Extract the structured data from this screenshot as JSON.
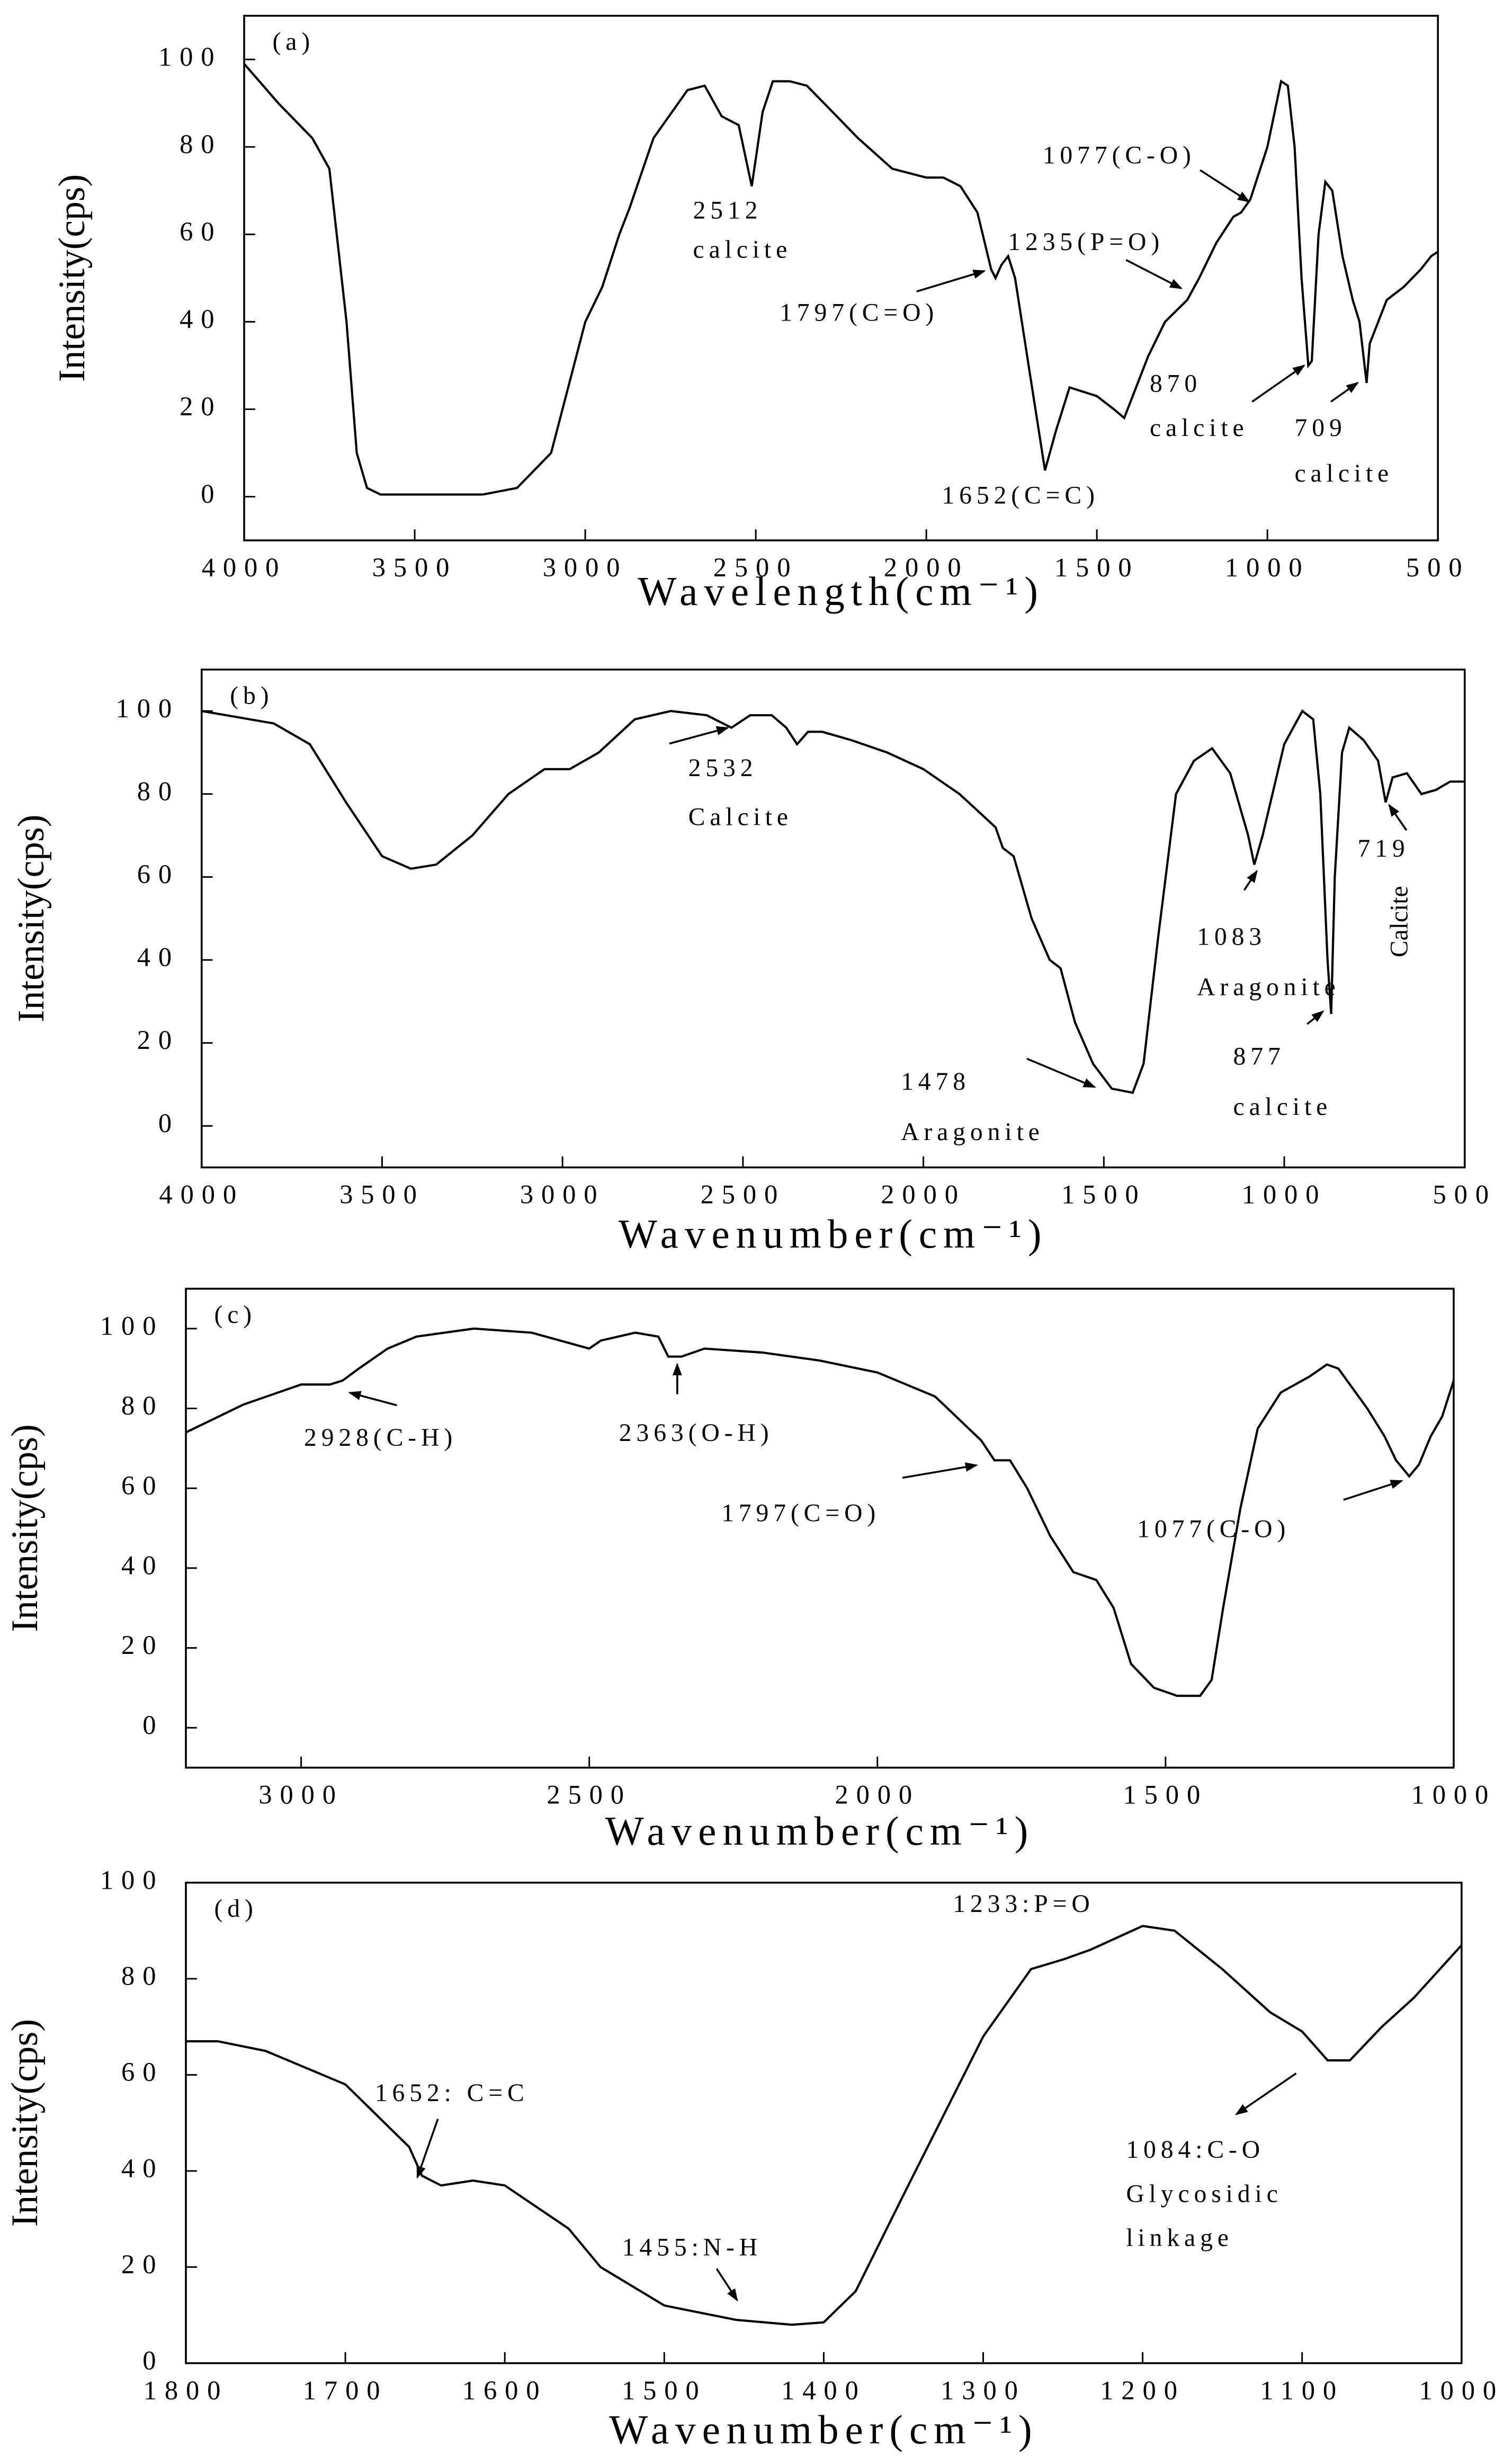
{
  "chart_data": [
    {
      "type": "line",
      "label": "(a)",
      "color": "#000000",
      "x": [
        4000,
        3900,
        3800,
        3750,
        3700,
        3670,
        3640,
        3600,
        3500,
        3400,
        3300,
        3200,
        3100,
        3000,
        2950,
        2900,
        2870,
        2800,
        2700,
        2650,
        2600,
        2550,
        2512,
        2480,
        2450,
        2400,
        2350,
        2300,
        2200,
        2100,
        2000,
        1950,
        1900,
        1850,
        1810,
        1797,
        1780,
        1760,
        1740,
        1700,
        1652,
        1620,
        1580,
        1500,
        1450,
        1420,
        1400,
        1350,
        1300,
        1235,
        1200,
        1150,
        1100,
        1077,
        1050,
        1000,
        960,
        940,
        920,
        900,
        880,
        870,
        850,
        830,
        810,
        780,
        750,
        730,
        709,
        700,
        650,
        600,
        550,
        520,
        500
      ],
      "values": [
        99,
        90,
        82,
        75,
        40,
        10,
        2,
        0.5,
        0.5,
        0.5,
        0.5,
        2,
        10,
        40,
        48,
        60,
        66,
        82,
        93,
        94,
        87,
        85,
        71,
        88,
        95,
        95,
        94,
        90,
        82,
        75,
        73,
        73,
        71,
        65,
        52,
        50,
        53,
        55,
        50,
        30,
        6,
        15,
        25,
        23,
        20,
        18,
        22,
        32,
        40,
        45,
        50,
        58,
        64,
        65,
        68,
        80,
        95,
        94,
        80,
        50,
        30,
        31,
        60,
        72,
        70,
        55,
        45,
        40,
        26,
        35,
        45,
        48,
        52,
        55,
        56
      ],
      "xlim": [
        4000,
        500
      ],
      "xticks": [
        4000,
        3500,
        3000,
        2500,
        2000,
        1500,
        1000,
        500
      ],
      "ylim": [
        -10,
        110
      ],
      "yticks": [
        0,
        20,
        40,
        60,
        80,
        100
      ],
      "x_label": "Wavelength(cm⁻¹)",
      "y_label": "Intensity(cps)",
      "annotations": [
        "2512",
        "calcite",
        "1797(C=O)",
        "1235(P=O)",
        "1077(C-O)",
        "1652(C=C)",
        "870",
        "calcite",
        "709",
        "calcite"
      ]
    },
    {
      "type": "line",
      "label": "(b)",
      "color": "#000000",
      "x": [
        4000,
        3800,
        3700,
        3600,
        3500,
        3420,
        3350,
        3250,
        3150,
        3050,
        2980,
        2900,
        2800,
        2700,
        2600,
        2532,
        2480,
        2420,
        2380,
        2350,
        2320,
        2280,
        2200,
        2100,
        2000,
        1900,
        1800,
        1780,
        1750,
        1700,
        1650,
        1620,
        1580,
        1530,
        1478,
        1420,
        1390,
        1350,
        1300,
        1250,
        1200,
        1150,
        1100,
        1083,
        1060,
        1000,
        950,
        920,
        900,
        880,
        870,
        860,
        840,
        820,
        780,
        740,
        719,
        700,
        660,
        620,
        580,
        540,
        500
      ],
      "values": [
        100,
        97,
        92,
        78,
        65,
        62,
        63,
        70,
        80,
        86,
        86,
        90,
        98,
        100,
        99,
        96,
        99,
        99,
        96,
        92,
        95,
        95,
        93,
        90,
        86,
        80,
        72,
        67,
        65,
        50,
        40,
        38,
        25,
        15,
        9,
        8,
        15,
        45,
        80,
        88,
        91,
        85,
        70,
        63,
        70,
        92,
        100,
        98,
        80,
        40,
        27,
        60,
        90,
        96,
        93,
        88,
        78,
        84,
        85,
        80,
        81,
        83,
        83
      ],
      "xlim": [
        4000,
        500
      ],
      "xticks": [
        4000,
        3500,
        3000,
        2500,
        2000,
        1500,
        1000,
        500
      ],
      "ylim": [
        -10,
        110
      ],
      "yticks": [
        0,
        20,
        40,
        60,
        80,
        100
      ],
      "x_label": "Wavenumber(cm⁻¹)",
      "y_label": "Intensity(cps)",
      "annotations": [
        "2532",
        "Calcite",
        "1478",
        "Aragonite",
        "1083",
        "Aragonite",
        "877",
        "calcite",
        "719",
        "Calcite"
      ]
    },
    {
      "type": "line",
      "label": "(c)",
      "color": "#000000",
      "x": [
        3200,
        3100,
        3000,
        2950,
        2928,
        2900,
        2850,
        2800,
        2700,
        2600,
        2500,
        2480,
        2420,
        2380,
        2363,
        2340,
        2300,
        2200,
        2100,
        2000,
        1900,
        1820,
        1797,
        1770,
        1740,
        1700,
        1660,
        1620,
        1590,
        1560,
        1520,
        1480,
        1440,
        1420,
        1400,
        1370,
        1340,
        1300,
        1250,
        1220,
        1200,
        1150,
        1120,
        1100,
        1077,
        1060,
        1040,
        1020,
        1000
      ],
      "values": [
        74,
        81,
        86,
        86,
        87,
        90,
        95,
        98,
        100,
        99,
        95,
        97,
        99,
        98,
        93,
        93,
        95,
        94,
        92,
        89,
        83,
        72,
        67,
        67,
        60,
        48,
        39,
        37,
        30,
        16,
        10,
        8,
        8,
        12,
        30,
        55,
        75,
        84,
        88,
        91,
        90,
        80,
        73,
        67,
        63,
        66,
        73,
        78,
        87
      ],
      "xlim": [
        3200,
        1000
      ],
      "xticks": [
        3000,
        2500,
        2000,
        1500,
        1000
      ],
      "ylim": [
        -10,
        110
      ],
      "yticks": [
        0,
        20,
        40,
        60,
        80,
        100
      ],
      "x_label": "Wavenumber(cm⁻¹)",
      "y_label": "Intensity(cps)",
      "annotations": [
        "2928(C-H)",
        "2363(O-H)",
        "1797(C=O)",
        "1077(C-O)"
      ]
    },
    {
      "type": "line",
      "label": "(d)",
      "color": "#000000",
      "x": [
        1800,
        1780,
        1750,
        1700,
        1660,
        1652,
        1640,
        1620,
        1600,
        1560,
        1540,
        1500,
        1455,
        1420,
        1400,
        1380,
        1350,
        1300,
        1270,
        1250,
        1233,
        1200,
        1180,
        1150,
        1120,
        1100,
        1084,
        1070,
        1050,
        1030,
        1000
      ],
      "values": [
        67,
        67,
        65,
        58,
        45,
        39,
        37,
        38,
        37,
        28,
        20,
        12,
        9,
        8,
        8.5,
        15,
        35,
        68,
        82,
        84,
        86,
        91,
        90,
        82,
        73,
        69,
        63,
        63,
        70,
        76,
        87
      ],
      "xlim": [
        1800,
        1000
      ],
      "xticks": [
        1800,
        1700,
        1600,
        1500,
        1400,
        1300,
        1200,
        1100,
        1000
      ],
      "ylim": [
        0,
        100
      ],
      "yticks": [
        0,
        20,
        40,
        60,
        80,
        100
      ],
      "x_label": "Wavenumber(cm⁻¹)",
      "y_label": "Intensity(cps)",
      "annotations": [
        "1652: C=C",
        "1455:N-H",
        "1233:P=O",
        "1084:C-O",
        "Glycosidic",
        "linkage"
      ]
    }
  ]
}
